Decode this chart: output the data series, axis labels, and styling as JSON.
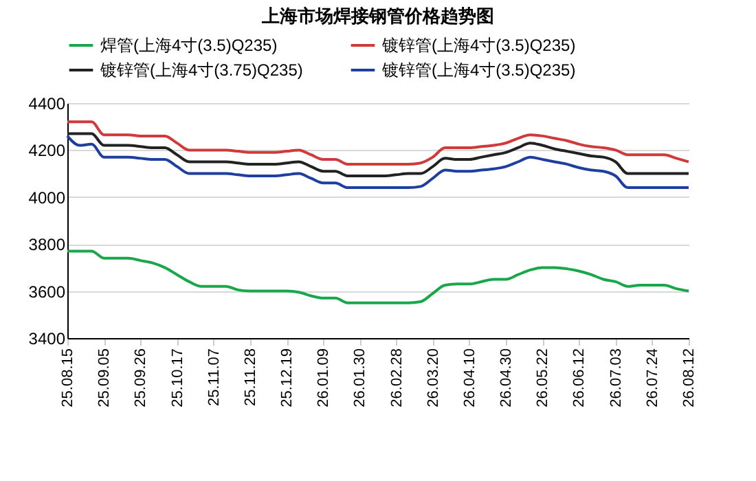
{
  "chart_data": {
    "type": "line",
    "title": "上海市场焊接钢管价格趋势图",
    "categories": [
      "25.08.15",
      null,
      null,
      "25.09.05",
      null,
      null,
      "25.09.26",
      null,
      null,
      "25.10.17",
      null,
      null,
      "25.11.07",
      null,
      null,
      "25.11.28",
      null,
      null,
      "25.12.19",
      null,
      null,
      "26.01.09",
      null,
      null,
      "26.01.30",
      null,
      null,
      "26.02.28",
      null,
      null,
      "26.03.20",
      null,
      null,
      "26.04.10",
      null,
      null,
      "26.04.30",
      null,
      null,
      "26.05.22",
      null,
      null,
      "26.06.12",
      null,
      null,
      "26.07.03",
      null,
      null,
      "26.07.24",
      null,
      null,
      "26.08.12"
    ],
    "series": [
      {
        "name": "焊管(上海4寸(3.5)Q235)",
        "color": "#1aa64a",
        "values": [
          3770,
          3770,
          3770,
          3740,
          3740,
          3740,
          3730,
          3720,
          3700,
          3670,
          3640,
          3620,
          3620,
          3620,
          3605,
          3600,
          3600,
          3600,
          3600,
          3595,
          3580,
          3570,
          3570,
          3550,
          3550,
          3550,
          3550,
          3550,
          3550,
          3555,
          3590,
          3625,
          3630,
          3630,
          3640,
          3650,
          3650,
          3670,
          3690,
          3700,
          3700,
          3695,
          3685,
          3670,
          3650,
          3640,
          3620,
          3625,
          3625,
          3625,
          3610,
          3600
        ]
      },
      {
        "name": "镀锌管(上海4寸(3.5)Q235)",
        "color": "#d03a3a",
        "values": [
          4320,
          4320,
          4320,
          4265,
          4265,
          4265,
          4260,
          4260,
          4260,
          4230,
          4200,
          4200,
          4200,
          4200,
          4195,
          4190,
          4190,
          4190,
          4195,
          4200,
          4180,
          4160,
          4160,
          4140,
          4140,
          4140,
          4140,
          4140,
          4140,
          4145,
          4170,
          4210,
          4210,
          4210,
          4215,
          4220,
          4230,
          4250,
          4265,
          4260,
          4250,
          4240,
          4225,
          4215,
          4210,
          4200,
          4180,
          4180,
          4180,
          4180,
          4165,
          4150
        ]
      },
      {
        "name": "镀锌管(上海4寸(3.75)Q235)",
        "color": "#222222",
        "values": [
          4270,
          4270,
          4270,
          4220,
          4220,
          4220,
          4215,
          4210,
          4210,
          4180,
          4150,
          4150,
          4150,
          4150,
          4145,
          4140,
          4140,
          4140,
          4145,
          4150,
          4130,
          4110,
          4110,
          4090,
          4090,
          4090,
          4090,
          4095,
          4100,
          4100,
          4130,
          4165,
          4160,
          4160,
          4170,
          4180,
          4190,
          4210,
          4230,
          4220,
          4205,
          4195,
          4185,
          4175,
          4170,
          4150,
          4100,
          4100,
          4100,
          4100,
          4100,
          4100
        ]
      },
      {
        "name": "镀锌管(上海4寸(3.5)Q235)",
        "color": "#1f3fa0",
        "values": [
          4260,
          4220,
          4225,
          4170,
          4170,
          4170,
          4165,
          4160,
          4160,
          4130,
          4100,
          4100,
          4100,
          4100,
          4095,
          4090,
          4090,
          4090,
          4095,
          4100,
          4080,
          4060,
          4060,
          4040,
          4040,
          4040,
          4040,
          4040,
          4040,
          4045,
          4080,
          4115,
          4110,
          4110,
          4115,
          4120,
          4130,
          4150,
          4170,
          4160,
          4150,
          4140,
          4125,
          4115,
          4110,
          4090,
          4040,
          4040,
          4040,
          4040,
          4040,
          4040
        ]
      }
    ],
    "ylim": [
      3400,
      4400
    ],
    "yticks": [
      3400,
      3600,
      3800,
      4000,
      4200,
      4400
    ],
    "grid": "y",
    "legend": "top"
  }
}
